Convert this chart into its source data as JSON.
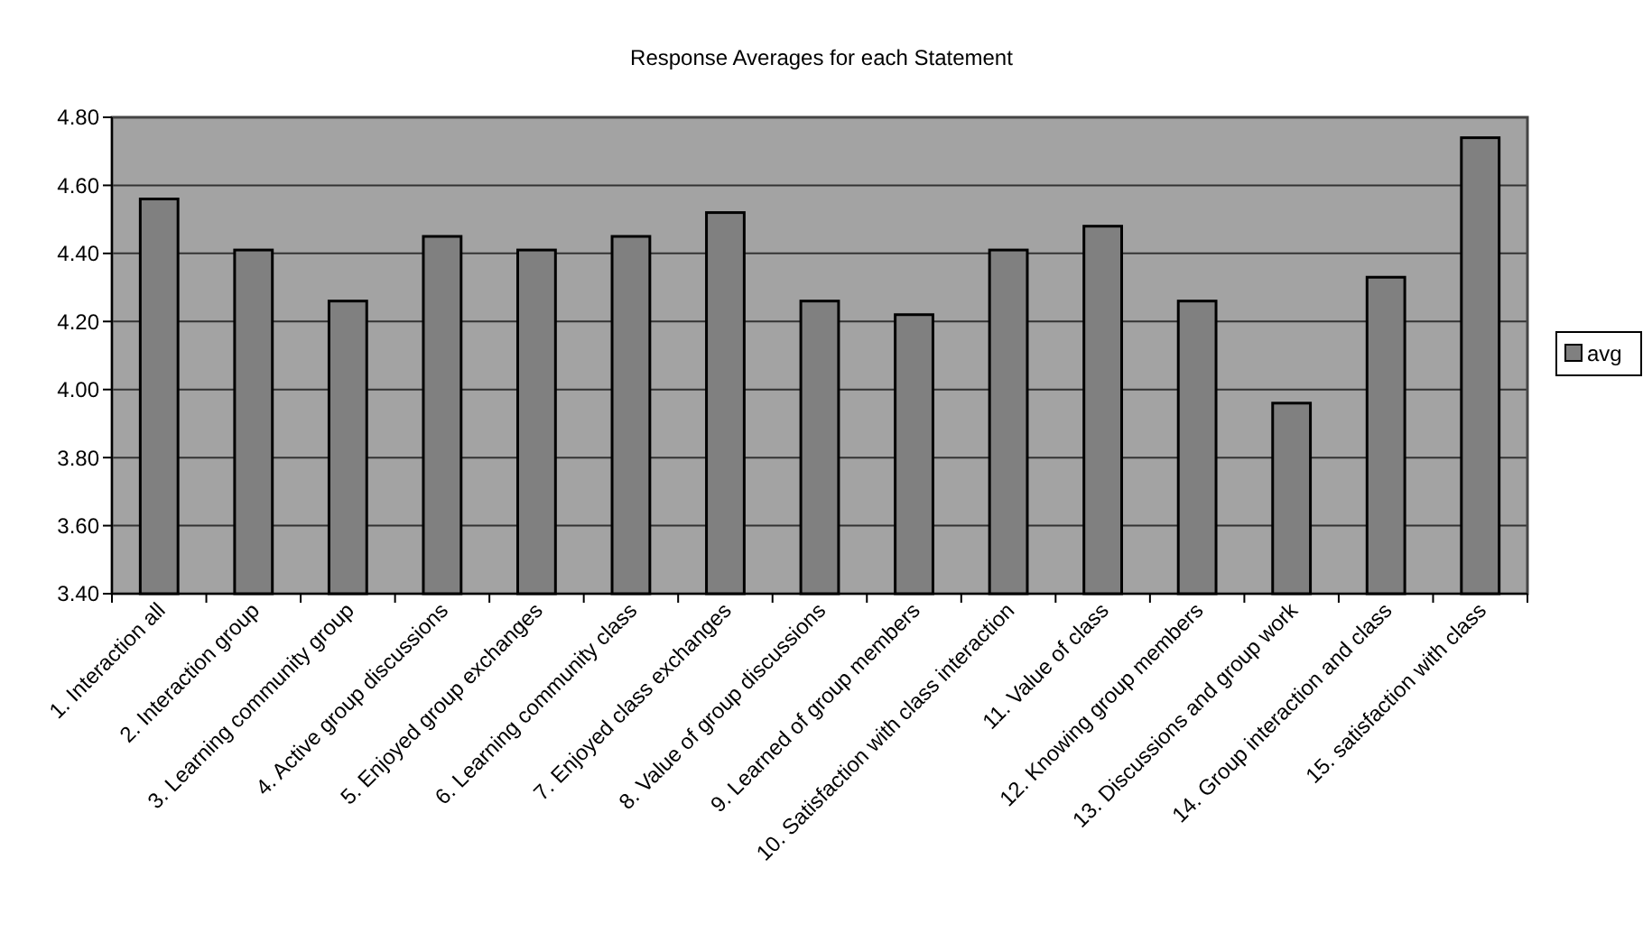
{
  "chart_data": {
    "type": "bar",
    "title": "Response Averages for each Statement",
    "categories": [
      "1. Interaction all",
      "2. Interaction group",
      "3. Learning community group",
      "4. Active group discussions",
      "5. Enjoyed group exchanges",
      "6. Learning community class",
      "7. Enjoyed class exchanges",
      "8. Value of group discussions",
      "9. Learned of group members",
      "10. Satisfaction with class interaction",
      "11. Value of class",
      "12. Knowing group members",
      "13. Discussions and group work",
      "14. Group interaction and class",
      "15. satisfaction with class"
    ],
    "series": [
      {
        "name": "avg",
        "color": "#808080",
        "values": [
          4.56,
          4.41,
          4.26,
          4.45,
          4.41,
          4.45,
          4.52,
          4.26,
          4.22,
          4.41,
          4.48,
          4.26,
          3.96,
          4.33,
          4.74
        ]
      }
    ],
    "ylim": [
      3.4,
      4.8
    ],
    "yticks": [
      {
        "value": 3.4,
        "label": "3.40"
      },
      {
        "value": 3.6,
        "label": "3.60"
      },
      {
        "value": 3.8,
        "label": "3.80"
      },
      {
        "value": 4.0,
        "label": "4.00"
      },
      {
        "value": 4.2,
        "label": "4.20"
      },
      {
        "value": 4.4,
        "label": "4.40"
      },
      {
        "value": 4.6,
        "label": "4.60"
      },
      {
        "value": 4.8,
        "label": "4.80"
      }
    ],
    "grid": "y",
    "legend": "right"
  }
}
